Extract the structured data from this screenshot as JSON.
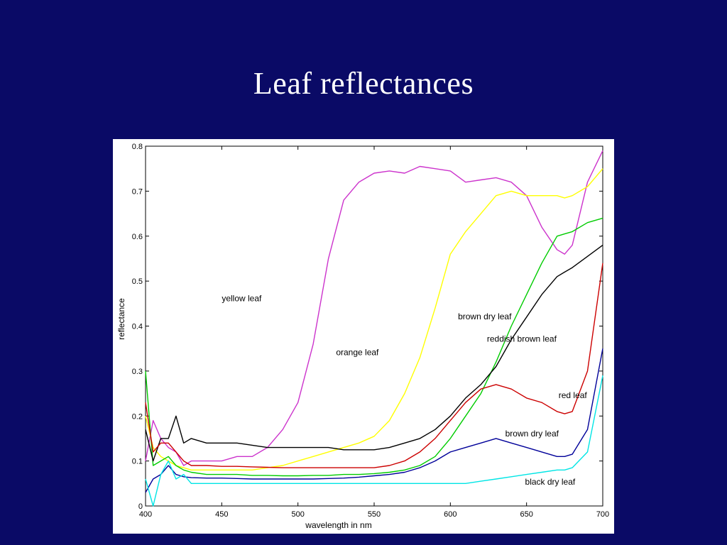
{
  "slide": {
    "title": "Leaf reflectances"
  },
  "colors": {
    "background": "#0a0a66",
    "yellow_leaf": "#cc33cc",
    "orange_leaf": "#ffff00",
    "brown_dry_leaf_green": "#00cc00",
    "reddish_brown_leaf": "#000000",
    "red_leaf": "#cc0000",
    "brown_dry_leaf_blue": "#000099",
    "black_dry_leaf": "#00e5e5"
  },
  "chart_data": {
    "type": "line",
    "title": "",
    "xlabel": "wavelength in nm",
    "ylabel": "reflectance",
    "xlim": [
      400,
      700
    ],
    "ylim": [
      0,
      0.8
    ],
    "x_ticks": [
      "400",
      "450",
      "500",
      "550",
      "600",
      "650",
      "700"
    ],
    "y_ticks": [
      "0",
      "0.1",
      "0.2",
      "0.3",
      "0.4",
      "0.5",
      "0.6",
      "0.7",
      "0.8"
    ],
    "x": [
      400,
      405,
      410,
      415,
      420,
      425,
      430,
      440,
      450,
      460,
      470,
      480,
      490,
      500,
      510,
      520,
      530,
      540,
      550,
      560,
      570,
      580,
      590,
      600,
      610,
      620,
      630,
      640,
      650,
      660,
      670,
      675,
      680,
      690,
      700
    ],
    "series": [
      {
        "name": "yellow leaf",
        "color_key": "yellow_leaf",
        "values": [
          0.1,
          0.19,
          0.15,
          0.13,
          0.12,
          0.09,
          0.1,
          0.1,
          0.1,
          0.11,
          0.11,
          0.13,
          0.17,
          0.23,
          0.36,
          0.55,
          0.68,
          0.72,
          0.74,
          0.745,
          0.74,
          0.755,
          0.75,
          0.745,
          0.72,
          0.725,
          0.73,
          0.72,
          0.69,
          0.62,
          0.57,
          0.56,
          0.58,
          0.72,
          0.79
        ],
        "label_at": [
          450,
          0.455
        ]
      },
      {
        "name": "orange leaf",
        "color_key": "orange_leaf",
        "values": [
          0.2,
          0.13,
          0.11,
          0.1,
          0.09,
          0.085,
          0.08,
          0.08,
          0.08,
          0.08,
          0.08,
          0.085,
          0.09,
          0.1,
          0.11,
          0.12,
          0.13,
          0.14,
          0.155,
          0.19,
          0.25,
          0.33,
          0.44,
          0.56,
          0.61,
          0.65,
          0.69,
          0.7,
          0.69,
          0.69,
          0.69,
          0.685,
          0.69,
          0.71,
          0.75
        ],
        "label_at": [
          525,
          0.335
        ]
      },
      {
        "name": "brown dry leaf",
        "color_key": "brown_dry_leaf_green",
        "values": [
          0.3,
          0.09,
          0.1,
          0.11,
          0.09,
          0.08,
          0.075,
          0.07,
          0.07,
          0.07,
          0.068,
          0.068,
          0.067,
          0.067,
          0.068,
          0.068,
          0.07,
          0.07,
          0.072,
          0.075,
          0.08,
          0.09,
          0.11,
          0.15,
          0.2,
          0.25,
          0.32,
          0.4,
          0.47,
          0.54,
          0.6,
          0.605,
          0.61,
          0.63,
          0.64
        ],
        "label_at": [
          605,
          0.415
        ]
      },
      {
        "name": "reddish brown leaf",
        "color_key": "reddish_brown_leaf",
        "values": [
          0.17,
          0.1,
          0.15,
          0.15,
          0.2,
          0.14,
          0.15,
          0.14,
          0.14,
          0.14,
          0.135,
          0.13,
          0.13,
          0.13,
          0.13,
          0.13,
          0.125,
          0.125,
          0.125,
          0.13,
          0.14,
          0.15,
          0.17,
          0.2,
          0.24,
          0.27,
          0.31,
          0.37,
          0.42,
          0.47,
          0.51,
          0.52,
          0.53,
          0.555,
          0.58
        ],
        "label_at": [
          624,
          0.365
        ]
      },
      {
        "name": "red leaf",
        "color_key": "red_leaf",
        "values": [
          0.23,
          0.12,
          0.14,
          0.14,
          0.12,
          0.1,
          0.09,
          0.09,
          0.088,
          0.088,
          0.087,
          0.086,
          0.085,
          0.085,
          0.085,
          0.085,
          0.085,
          0.085,
          0.085,
          0.09,
          0.1,
          0.12,
          0.15,
          0.19,
          0.23,
          0.26,
          0.27,
          0.26,
          0.24,
          0.23,
          0.21,
          0.205,
          0.21,
          0.3,
          0.54
        ],
        "label_at": [
          671,
          0.24
        ]
      },
      {
        "name": "brown dry leaf",
        "color_key": "brown_dry_leaf_blue",
        "values": [
          0.03,
          0.06,
          0.07,
          0.09,
          0.07,
          0.065,
          0.063,
          0.062,
          0.062,
          0.061,
          0.06,
          0.06,
          0.06,
          0.06,
          0.06,
          0.061,
          0.062,
          0.064,
          0.067,
          0.07,
          0.075,
          0.085,
          0.1,
          0.12,
          0.13,
          0.14,
          0.15,
          0.14,
          0.13,
          0.12,
          0.11,
          0.11,
          0.115,
          0.17,
          0.35
        ],
        "label_at": [
          636,
          0.155
        ]
      },
      {
        "name": "black dry leaf",
        "color_key": "black_dry_leaf",
        "values": [
          0.06,
          0.0,
          0.07,
          0.1,
          0.06,
          0.07,
          0.05,
          0.05,
          0.05,
          0.05,
          0.05,
          0.05,
          0.05,
          0.05,
          0.05,
          0.05,
          0.05,
          0.05,
          0.05,
          0.05,
          0.05,
          0.05,
          0.05,
          0.05,
          0.05,
          0.055,
          0.06,
          0.065,
          0.07,
          0.075,
          0.08,
          0.08,
          0.085,
          0.12,
          0.29
        ],
        "label_at": [
          649,
          0.047
        ]
      }
    ]
  }
}
